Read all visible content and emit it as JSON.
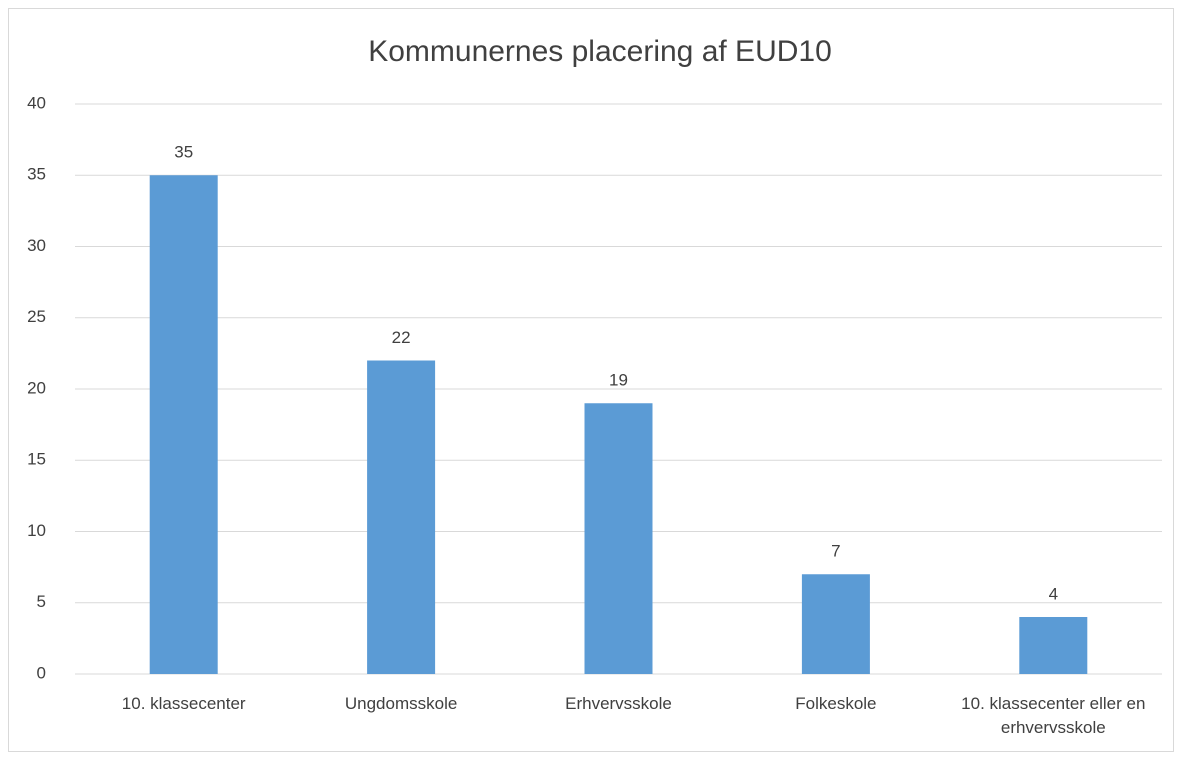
{
  "chart_data": {
    "type": "bar",
    "title": "Kommunernes placering af EUD10",
    "categories": [
      "10. klassecenter",
      "Ungdomsskole",
      "Erhvervsskole",
      "Folkeskole",
      "10. klassecenter eller en erhvervsskole"
    ],
    "values": [
      35,
      22,
      19,
      7,
      4
    ],
    "color": "#5b9bd5",
    "ylim": [
      0,
      40
    ],
    "yticks": [
      0,
      5,
      10,
      15,
      20,
      25,
      30,
      35,
      40
    ],
    "grid": true
  }
}
